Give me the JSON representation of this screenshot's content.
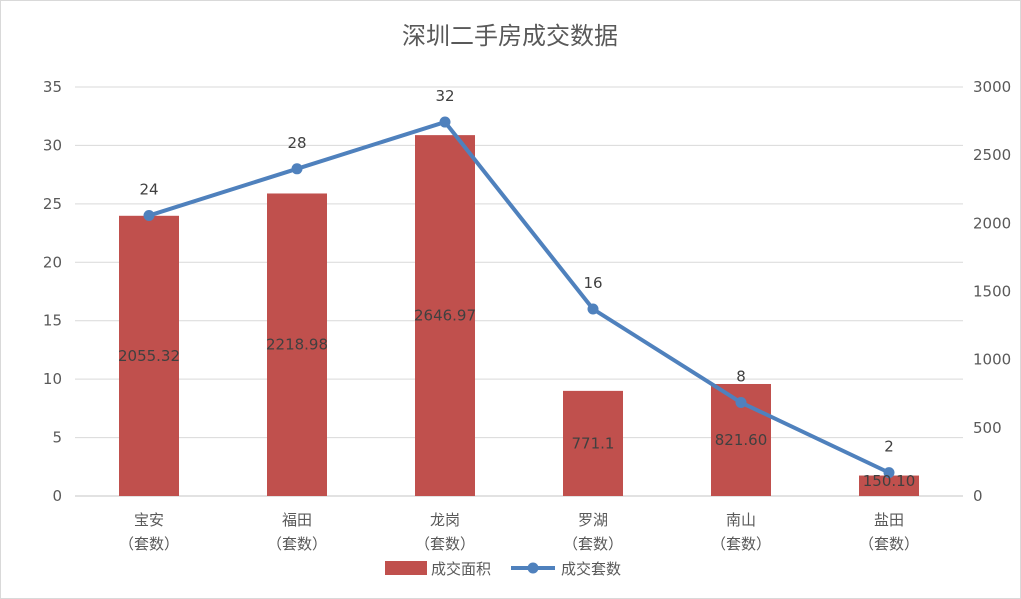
{
  "chart_data": {
    "type": "bar+line",
    "title": "深圳二手房成交数据",
    "categories": [
      [
        "宝安",
        "（套数）"
      ],
      [
        "福田",
        "（套数）"
      ],
      [
        "龙岗",
        "（套数）"
      ],
      [
        "罗湖",
        "（套数）"
      ],
      [
        "南山",
        "（套数）"
      ],
      [
        "盐田",
        "（套数）"
      ]
    ],
    "series": [
      {
        "name": "成交面积",
        "type": "bar",
        "axis": "right",
        "color": "#c0504d",
        "values": [
          2055.32,
          2218.98,
          2646.97,
          771.1,
          821.6,
          150.1
        ],
        "labels": [
          "2055.32",
          "2218.98",
          "2646.97",
          "771.1",
          "821.60",
          "150.10"
        ]
      },
      {
        "name": "成交套数",
        "type": "line",
        "axis": "left",
        "color": "#4f81bd",
        "values": [
          24,
          28,
          32,
          16,
          8,
          2
        ],
        "labels": [
          "24",
          "28",
          "32",
          "16",
          "8",
          "2"
        ]
      }
    ],
    "left_axis": {
      "min": 0,
      "max": 35,
      "ticks": [
        "0",
        "5",
        "10",
        "15",
        "20",
        "25",
        "30",
        "35"
      ]
    },
    "right_axis": {
      "min": 0,
      "max": 3000,
      "ticks": [
        "0",
        "500",
        "1000",
        "1500",
        "2000",
        "2500",
        "3000"
      ]
    },
    "grid": true,
    "legend": "bottom"
  }
}
